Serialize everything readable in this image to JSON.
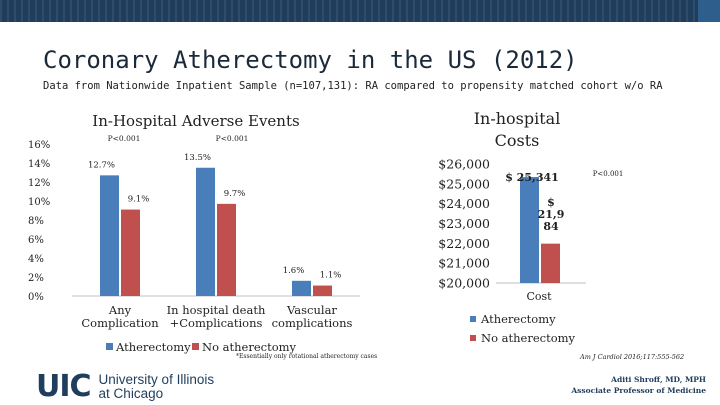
{
  "title": "Coronary Atherectomy in the US (2012)",
  "subtitle": "Data from Nationwide Inpatient Sample (n=107,131): RA compared to propensity matched cohort w/o RA",
  "footnote": "*Essentially only rotational atherectomy cases",
  "citation": "Am J Cardiol 2016;117:555-562",
  "author": {
    "name": "Aditi Shroff, MD, MPH",
    "role": "Associate Professor of Medicine"
  },
  "logo": {
    "mark": "UIC",
    "line1": "University of Illinois",
    "line2": "at Chicago"
  },
  "colors": {
    "atherectomy": "#4a7ebb",
    "no_atherectomy": "#c0504d",
    "brand": "#1f3d5c"
  },
  "chart_data": [
    {
      "type": "bar",
      "title": "In-Hospital Adverse Events",
      "categories": [
        [
          "Any",
          "Complication"
        ],
        [
          "In hospital death",
          "+Complications"
        ],
        [
          "Vascular",
          "complications"
        ]
      ],
      "series": [
        {
          "name": "Atherectomy",
          "values": [
            12.7,
            13.5,
            1.6
          ],
          "labels": [
            "12.7%",
            "13.5%",
            "1.6%"
          ]
        },
        {
          "name": "No atherectomy",
          "values": [
            9.1,
            9.7,
            1.1
          ],
          "labels": [
            "9.1%",
            "9.7%",
            "1.1%"
          ]
        }
      ],
      "ylim": [
        0,
        16
      ],
      "yticks": [
        "0%",
        "2%",
        "4%",
        "6%",
        "8%",
        "10%",
        "12%",
        "14%",
        "16%"
      ],
      "pvalues": [
        "P<0.001",
        "P<0.001"
      ],
      "legend": "bottom"
    },
    {
      "type": "bar",
      "title": "In-hospital Costs",
      "categories": [
        "Cost"
      ],
      "series": [
        {
          "name": "Atherectomy",
          "values": [
            25341
          ],
          "labels": [
            "$ 25,341"
          ]
        },
        {
          "name": "No atherectomy",
          "values": [
            21984
          ],
          "labels": [
            "$",
            "21,9",
            "84"
          ]
        }
      ],
      "ylim": [
        20000,
        26000
      ],
      "yticks": [
        "$20,000",
        "$21,000",
        "$22,000",
        "$23,000",
        "$24,000",
        "$25,000",
        "$26,000"
      ],
      "pvalue": "P<0.001",
      "legend": "bottom"
    }
  ]
}
